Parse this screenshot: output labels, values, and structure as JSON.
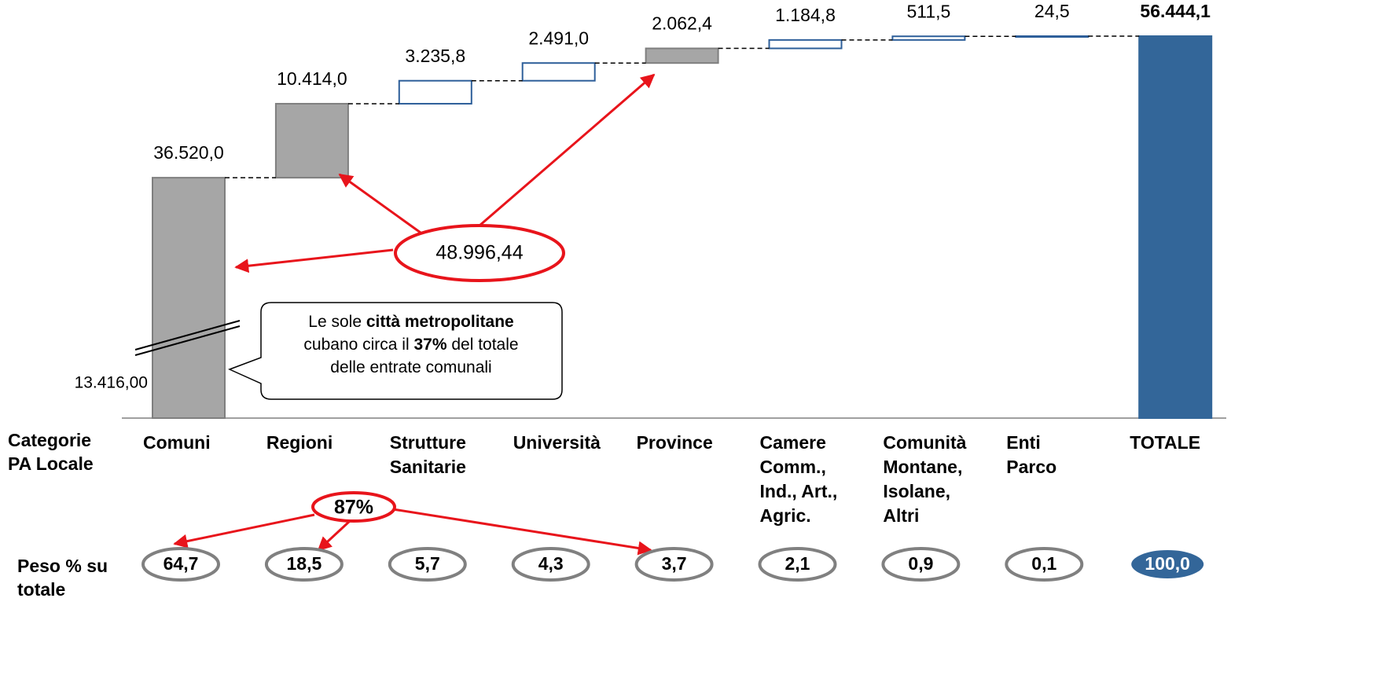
{
  "chart_data": {
    "type": "waterfall",
    "categories": [
      [
        "Comuni"
      ],
      [
        "Regioni"
      ],
      [
        "Strutture",
        "Sanitarie"
      ],
      [
        "Università"
      ],
      [
        "Province"
      ],
      [
        "Camere",
        "Comm.,",
        "Ind., Art.,",
        "Agric."
      ],
      [
        "Comunità",
        "Montane,",
        "Isolane,",
        "Altri"
      ],
      [
        "Enti",
        "Parco"
      ],
      [
        "TOTALE"
      ]
    ],
    "values": [
      36520.0,
      10414.0,
      3235.8,
      2491.0,
      2062.4,
      1184.8,
      511.5,
      24.5,
      56444.1
    ],
    "value_labels": [
      "36.520,0",
      "10.414,0",
      "3.235,8",
      "2.491,0",
      "2.062,4",
      "1.184,8",
      "511,5",
      "24,5",
      "56.444,1"
    ],
    "bar_fills": [
      "#a6a6a6",
      "#a6a6a6",
      "#ffffff",
      "#ffffff",
      "#a6a6a6",
      "#ffffff",
      "#ffffff",
      "#ffffff",
      "#336699"
    ],
    "bar_stroke": "#2e5f9a",
    "ylim": [
      13416,
      56444.1
    ],
    "axis_break": {
      "value": 13416,
      "label": "13.416,00"
    },
    "row_labels": [
      [
        "Categorie",
        "PA Locale"
      ],
      [
        "Peso % su",
        "totale"
      ]
    ],
    "shares": [
      64.7,
      18.5,
      5.7,
      4.3,
      3.7,
      2.1,
      0.9,
      0.1,
      100.0
    ],
    "share_labels": [
      "64,7",
      "18,5",
      "5,7",
      "4,3",
      "3,7",
      "2,1",
      "0,9",
      "0,1",
      "100,0"
    ],
    "annotations": {
      "sum_label": "48.996,44",
      "share_sum_label": "87%",
      "callout": [
        [
          "Le sole ",
          "città metropolitane"
        ],
        [
          "cubano circa il ",
          "37%",
          " del totale"
        ],
        [
          "delle entrate comunali"
        ]
      ]
    }
  }
}
